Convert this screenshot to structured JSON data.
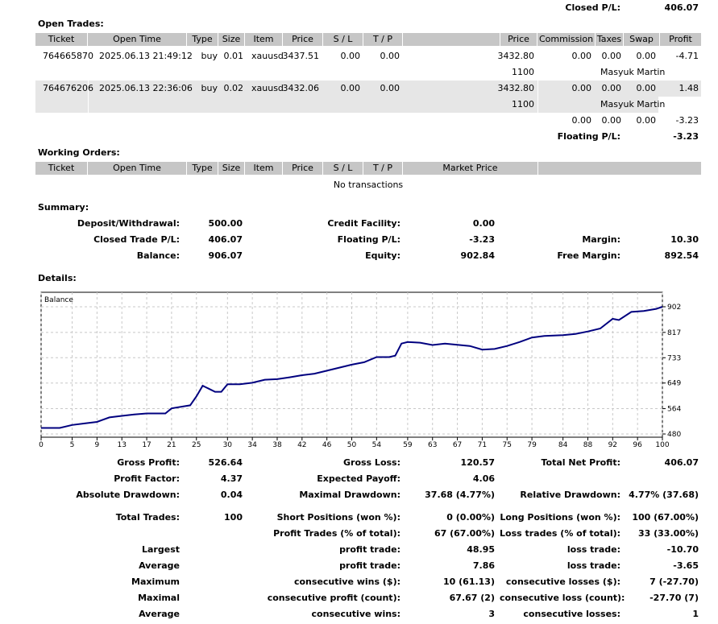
{
  "closed_pl_top": {
    "label": "Closed P/L:",
    "value": "406.07"
  },
  "open_trades": {
    "title": "Open Trades:",
    "headers": [
      "Ticket",
      "Open Time",
      "Type",
      "Size",
      "Item",
      "Price",
      "S / L",
      "T / P",
      "",
      "Price",
      "Commission",
      "Taxes",
      "Swap",
      "Profit"
    ],
    "rows": [
      {
        "ticket": "764665870",
        "time": "2025.06.13 21:49:12",
        "type": "buy",
        "size": "0.01",
        "item": "xauusd",
        "price": "3437.51",
        "sl": "0.00",
        "tp": "0.00",
        "cur_price": "3432.80",
        "commission": "0.00",
        "taxes": "0.00",
        "swap": "0.00",
        "profit": "-4.71",
        "sub_id": "1100",
        "sub_name": "Masyuk Martin"
      },
      {
        "ticket": "764676206",
        "time": "2025.06.13 22:36:06",
        "type": "buy",
        "size": "0.02",
        "item": "xauusd",
        "price": "3432.06",
        "sl": "0.00",
        "tp": "0.00",
        "cur_price": "3432.80",
        "commission": "0.00",
        "taxes": "0.00",
        "swap": "0.00",
        "profit": "1.48",
        "sub_id": "1100",
        "sub_name": "Masyuk Martin"
      }
    ],
    "totals": {
      "commission": "0.00",
      "taxes": "0.00",
      "swap": "0.00",
      "profit": "-3.23"
    },
    "floating": {
      "label": "Floating P/L:",
      "value": "-3.23"
    }
  },
  "working_orders": {
    "title": "Working Orders:",
    "headers": [
      "Ticket",
      "Open Time",
      "Type",
      "Size",
      "Item",
      "Price",
      "S / L",
      "T / P",
      "Market Price",
      ""
    ],
    "empty": "No transactions"
  },
  "summary": {
    "title": "Summary:",
    "deposit": {
      "label": "Deposit/Withdrawal:",
      "value": "500.00"
    },
    "credit": {
      "label": "Credit Facility:",
      "value": "0.00"
    },
    "closed_trade": {
      "label": "Closed Trade P/L:",
      "value": "406.07"
    },
    "floating": {
      "label": "Floating P/L:",
      "value": "-3.23"
    },
    "margin": {
      "label": "Margin:",
      "value": "10.30"
    },
    "balance": {
      "label": "Balance:",
      "value": "906.07"
    },
    "equity": {
      "label": "Equity:",
      "value": "902.84"
    },
    "free_margin": {
      "label": "Free Margin:",
      "value": "892.54"
    }
  },
  "details": {
    "title": "Details:"
  },
  "chart_data": {
    "type": "line",
    "title": "Balance",
    "series_color": "#00007f",
    "grid": true,
    "xlim": [
      0,
      100
    ],
    "ylim": [
      480,
      902
    ],
    "x_ticks": [
      0,
      5,
      9,
      13,
      17,
      21,
      25,
      30,
      34,
      38,
      42,
      46,
      50,
      54,
      59,
      63,
      67,
      71,
      75,
      79,
      84,
      88,
      92,
      96,
      100
    ],
    "y_ticks": [
      480,
      564,
      649,
      733,
      817,
      902
    ],
    "x": [
      0,
      3,
      5,
      7,
      9,
      11,
      13,
      15,
      17,
      20,
      21,
      23,
      24,
      25,
      26,
      27,
      28,
      29,
      30,
      32,
      34,
      36,
      38,
      40,
      42,
      44,
      46,
      48,
      50,
      52,
      54,
      56,
      57,
      58,
      59,
      61,
      63,
      65,
      67,
      69,
      71,
      73,
      75,
      77,
      79,
      81,
      84,
      86,
      88,
      90,
      92,
      93,
      95,
      97,
      99,
      100
    ],
    "y": [
      500,
      500,
      510,
      515,
      520,
      535,
      540,
      545,
      548,
      548,
      565,
      572,
      575,
      605,
      640,
      630,
      620,
      620,
      645,
      645,
      650,
      660,
      662,
      668,
      675,
      680,
      690,
      700,
      710,
      718,
      735,
      735,
      740,
      780,
      785,
      783,
      775,
      780,
      776,
      772,
      760,
      762,
      772,
      785,
      800,
      805,
      808,
      812,
      820,
      830,
      862,
      858,
      885,
      888,
      895,
      902
    ]
  },
  "stats": {
    "gross_profit": {
      "label": "Gross Profit:",
      "value": "526.64"
    },
    "gross_loss": {
      "label": "Gross Loss:",
      "value": "120.57"
    },
    "total_net_profit": {
      "label": "Total Net Profit:",
      "value": "406.07"
    },
    "profit_factor": {
      "label": "Profit Factor:",
      "value": "4.37"
    },
    "expected_payoff": {
      "label": "Expected Payoff:",
      "value": "4.06"
    },
    "absolute_drawdown": {
      "label": "Absolute Drawdown:",
      "value": "0.04"
    },
    "maximal_drawdown": {
      "label": "Maximal Drawdown:",
      "value": "37.68 (4.77%)"
    },
    "relative_drawdown": {
      "label": "Relative Drawdown:",
      "value": "4.77% (37.68)"
    },
    "total_trades": {
      "label": "Total Trades:",
      "value": "100"
    },
    "short_positions": {
      "label": "Short Positions (won %):",
      "value": "0 (0.00%)"
    },
    "long_positions": {
      "label": "Long Positions (won %):",
      "value": "100 (67.00%)"
    },
    "profit_trades": {
      "label": "Profit Trades (% of total):",
      "value": "67 (67.00%)"
    },
    "loss_trades": {
      "label": "Loss trades (% of total):",
      "value": "33 (33.00%)"
    },
    "largest": {
      "label": "Largest",
      "profit_label": "profit trade:",
      "profit": "48.95",
      "loss_label": "loss trade:",
      "loss": "-10.70"
    },
    "average": {
      "label": "Average",
      "profit_label": "profit trade:",
      "profit": "7.86",
      "loss_label": "loss trade:",
      "loss": "-3.65"
    },
    "maximum": {
      "label": "Maximum",
      "profit_label": "consecutive wins ($):",
      "profit": "10 (61.13)",
      "loss_label": "consecutive losses ($):",
      "loss": "7 (-27.70)"
    },
    "maximal": {
      "label": "Maximal",
      "profit_label": "consecutive profit (count):",
      "profit": "67.67 (2)",
      "loss_label": "consecutive loss (count):",
      "loss": "-27.70 (7)"
    },
    "average2": {
      "label": "Average",
      "profit_label": "consecutive wins:",
      "profit": "3",
      "loss_label": "consecutive losses:",
      "loss": "1"
    }
  }
}
